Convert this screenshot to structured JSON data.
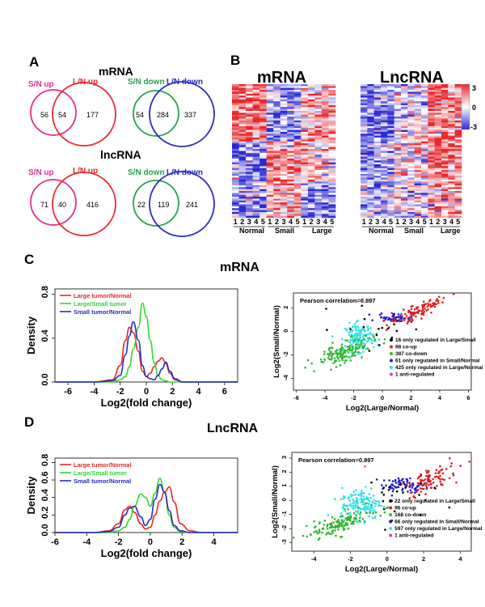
{
  "panels": {
    "A": "A",
    "B": "B",
    "C": "C",
    "D": "D"
  },
  "section_titles": {
    "mrna": "mRNA",
    "lncrna": "lncRNA",
    "c_title": "mRNA",
    "d_title": "LncRNA"
  },
  "venn": {
    "mrna_up": {
      "left_label": "S/N up",
      "right_label": "L/N up",
      "left": "56",
      "overlap": "54",
      "right": "177"
    },
    "mrna_down": {
      "left_label": "S/N down",
      "right_label": "L/N down",
      "left": "54",
      "overlap": "284",
      "right": "337"
    },
    "lnc_up": {
      "left_label": "S/N up",
      "right_label": "L/N up",
      "left": "71",
      "overlap": "40",
      "right": "416"
    },
    "lnc_down": {
      "left_label": "S/N down",
      "right_label": "L/N down",
      "left": "22",
      "overlap": "119",
      "right": "241"
    },
    "colors": {
      "pink": "#e0308c",
      "red": "#e8262a",
      "green": "#22a34a",
      "blue": "#2b2bc4"
    }
  },
  "heatmaps": {
    "mrna_title": "mRNA",
    "lnc_title": "LncRNA",
    "columns": [
      "1",
      "2",
      "3",
      "4",
      "5",
      "1",
      "2",
      "3",
      "4",
      "5",
      "1",
      "2",
      "3",
      "4",
      "5"
    ],
    "groups": [
      "Normal",
      "Small",
      "Large"
    ],
    "scale_labels": [
      "3",
      "0",
      "-3"
    ],
    "colors": {
      "high": "#e8262a",
      "mid": "#ffffff",
      "low": "#2b2bd4"
    }
  },
  "density": {
    "ylabel": "Density",
    "xlabel": "Log2(fold change)",
    "legend": [
      "Large tumor/Normal",
      "Large/Small tumor",
      "Small tumor/Normal"
    ],
    "colors": [
      "#e8262a",
      "#31d62d",
      "#2b2bc4"
    ]
  },
  "scatter": {
    "xlabel": "Log2(Large/Normal)",
    "ylabel": "Log2(Small/Normal)",
    "mrna_pearson": "Pearson correlation=0.897",
    "lnc_pearson": "Pearson correlation=0.897",
    "mrna_legend": [
      "16 only regulated in Large/Small",
      "98 co-up",
      "387 co-down",
      "61 only regulated in Small/Normal",
      "425 only regulated in Large/Normal",
      "1 anti-regulated"
    ],
    "lnc_legend": [
      "22 only regulated in Large/Small",
      "96 co-up",
      "168 co-down",
      "66 only regulated in Small/Normal",
      "597 only regulated in Large/Normal",
      "1 anti-regulated"
    ],
    "colors": [
      "#000000",
      "#dd1f1f",
      "#2eb82e",
      "#1f1fcc",
      "#33e0e8",
      "#d63fd6"
    ]
  },
  "chart_data": [
    {
      "type": "line",
      "title": "mRNA",
      "xlabel": "Log2(fold change)",
      "ylabel": "Density",
      "xlim": [
        -7,
        7
      ],
      "ylim": [
        0,
        0.85
      ],
      "x_ticks": [
        "-6",
        "-4",
        "-2",
        "0",
        "2",
        "4",
        "6"
      ],
      "y_ticks": [
        "0.0",
        "0.4",
        "0.8"
      ],
      "x": [
        -7,
        -4,
        -2.6,
        -2,
        -1.6,
        -1.3,
        -1.0,
        -0.6,
        -0.3,
        0,
        0.3,
        0.6,
        0.9,
        1.2,
        1.5,
        1.8,
        2.2,
        2.8,
        4,
        7
      ],
      "series": [
        {
          "name": "Large tumor/Normal",
          "values": [
            0,
            0,
            0.02,
            0.15,
            0.38,
            0.5,
            0.45,
            0.28,
            0.1,
            0.05,
            0.08,
            0.14,
            0.19,
            0.22,
            0.17,
            0.08,
            0.02,
            0,
            0,
            0
          ]
        },
        {
          "name": "Large/Small tumor",
          "values": [
            0,
            0,
            0,
            0.02,
            0.05,
            0.14,
            0.3,
            0.5,
            0.72,
            0.6,
            0.38,
            0.18,
            0.06,
            0.02,
            0.01,
            0,
            0,
            0,
            0,
            0
          ]
        },
        {
          "name": "Small tumor/Normal",
          "values": [
            0,
            0,
            0.01,
            0.06,
            0.25,
            0.42,
            0.55,
            0.38,
            0.15,
            0.05,
            0.03,
            0.02,
            0.06,
            0.12,
            0.18,
            0.1,
            0.03,
            0,
            0,
            0
          ]
        }
      ]
    },
    {
      "type": "line",
      "title": "LncRNA",
      "xlabel": "Log2(fold change)",
      "ylabel": "Density",
      "xlim": [
        -6,
        5.5
      ],
      "ylim": [
        0,
        0.85
      ],
      "x_ticks": [
        "-6",
        "-4",
        "-2",
        "0",
        "2",
        "4"
      ],
      "y_ticks": [
        "0.0",
        "0.2",
        "0.4",
        "0.6",
        "0.8"
      ],
      "x": [
        -6,
        -3.5,
        -2.6,
        -2,
        -1.6,
        -1.3,
        -1.0,
        -0.6,
        -0.3,
        0,
        0.3,
        0.6,
        0.9,
        1.2,
        1.5,
        1.9,
        2.5,
        3.2,
        5.5
      ],
      "series": [
        {
          "name": "Large tumor/Normal",
          "values": [
            0,
            0,
            0.02,
            0.1,
            0.26,
            0.3,
            0.23,
            0.1,
            0.04,
            0.06,
            0.2,
            0.36,
            0.46,
            0.52,
            0.35,
            0.1,
            0.02,
            0,
            0
          ]
        },
        {
          "name": "Large/Small tumor",
          "values": [
            0,
            0,
            0,
            0.02,
            0.06,
            0.15,
            0.3,
            0.44,
            0.4,
            0.3,
            0.45,
            0.62,
            0.45,
            0.2,
            0.06,
            0.01,
            0,
            0,
            0
          ]
        },
        {
          "name": "Small tumor/Normal",
          "values": [
            0,
            0,
            0.01,
            0.06,
            0.2,
            0.28,
            0.3,
            0.18,
            0.08,
            0.15,
            0.38,
            0.55,
            0.46,
            0.25,
            0.08,
            0.02,
            0,
            0,
            0
          ]
        }
      ]
    },
    {
      "type": "scatter",
      "title": "mRNA",
      "xlabel": "Log2(Large/Normal)",
      "ylabel": "Log2(Small/Normal)",
      "xlim": [
        -6.2,
        6.2
      ],
      "ylim": [
        -5,
        3.3
      ],
      "x_ticks": [
        "-6",
        "-4",
        "-2",
        "0",
        "2",
        "4",
        "6"
      ],
      "y_ticks": [
        "2",
        "0",
        "-2",
        "-4"
      ],
      "series": [
        {
          "name": "16 only regulated in Large/Small",
          "color": "#000000",
          "n": 16,
          "center": [
            0,
            0.3
          ],
          "spread": [
            1.6,
            0.9
          ]
        },
        {
          "name": "98 co-up",
          "color": "#dd1f1f",
          "n": 98,
          "center": [
            2.4,
            1.6
          ],
          "spread": [
            0.9,
            0.6
          ]
        },
        {
          "name": "387 co-down",
          "color": "#2eb82e",
          "n": 387,
          "center": [
            -2.8,
            -1.8
          ],
          "spread": [
            1.0,
            0.7
          ]
        },
        {
          "name": "61 only regulated in Small/Normal",
          "color": "#1f1fcc",
          "n": 61,
          "center": [
            0.9,
            1.2
          ],
          "spread": [
            0.6,
            0.2
          ]
        },
        {
          "name": "425 only regulated in Large/Normal",
          "color": "#33e0e8",
          "n": 425,
          "center": [
            -1.6,
            -0.5
          ],
          "spread": [
            0.5,
            0.6
          ]
        },
        {
          "name": "1 anti-regulated",
          "color": "#d63fd6",
          "n": 1,
          "center": [
            -1.4,
            2.6
          ],
          "spread": [
            0,
            0
          ]
        }
      ]
    },
    {
      "type": "scatter",
      "title": "LncRNA",
      "xlabel": "Log2(Large/Normal)",
      "ylabel": "Log2(Small/Normal)",
      "xlim": [
        -5.2,
        4.6
      ],
      "ylim": [
        -3.6,
        3.4
      ],
      "x_ticks": [
        "-4",
        "-2",
        "0",
        "2",
        "4"
      ],
      "y_ticks": [
        "3",
        "2",
        "1",
        "0",
        "-1",
        "-2",
        "-3"
      ],
      "series": [
        {
          "name": "22 only regulated in Large/Small",
          "color": "#000000",
          "n": 22,
          "center": [
            0.1,
            0.3
          ],
          "spread": [
            1.0,
            0.8
          ]
        },
        {
          "name": "96 co-up",
          "color": "#dd1f1f",
          "n": 96,
          "center": [
            2.2,
            1.3
          ],
          "spread": [
            0.8,
            0.6
          ]
        },
        {
          "name": "168 co-down",
          "color": "#2eb82e",
          "n": 168,
          "center": [
            -2.5,
            -1.6
          ],
          "spread": [
            0.9,
            0.6
          ]
        },
        {
          "name": "66 only regulated in Small/Normal",
          "color": "#1f1fcc",
          "n": 66,
          "center": [
            0.9,
            1.1
          ],
          "spread": [
            0.6,
            0.25
          ]
        },
        {
          "name": "597 only regulated in Large/Normal",
          "color": "#33e0e8",
          "n": 597,
          "center": [
            -1.4,
            -0.2
          ],
          "spread": [
            0.55,
            0.55
          ]
        },
        {
          "name": "1 anti-regulated",
          "color": "#d63fd6",
          "n": 1,
          "center": [
            -1.2,
            2.4
          ],
          "spread": [
            0,
            0
          ]
        }
      ]
    }
  ]
}
